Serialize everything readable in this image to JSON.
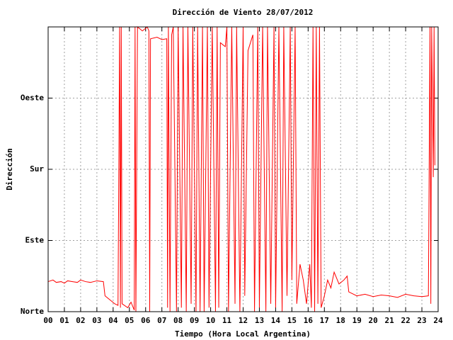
{
  "chart_data": {
    "type": "line",
    "title": "Dirección de Viento 28/07/2012",
    "x_label": "Tiempo (Hora Local Argentina)",
    "y_label": "Dirección",
    "color": "#ff0000",
    "grid": true,
    "xlim": [
      0,
      24
    ],
    "ylim": [
      0,
      360
    ],
    "xticks": [
      {
        "value": 0,
        "label": "00"
      },
      {
        "value": 1,
        "label": "01"
      },
      {
        "value": 2,
        "label": "02"
      },
      {
        "value": 3,
        "label": "03"
      },
      {
        "value": 4,
        "label": "04"
      },
      {
        "value": 5,
        "label": "05"
      },
      {
        "value": 6,
        "label": "06"
      },
      {
        "value": 7,
        "label": "07"
      },
      {
        "value": 8,
        "label": "08"
      },
      {
        "value": 9,
        "label": "09"
      },
      {
        "value": 10,
        "label": "10"
      },
      {
        "value": 11,
        "label": "11"
      },
      {
        "value": 12,
        "label": "12"
      },
      {
        "value": 13,
        "label": "13"
      },
      {
        "value": 14,
        "label": "14"
      },
      {
        "value": 15,
        "label": "15"
      },
      {
        "value": 16,
        "label": "16"
      },
      {
        "value": 17,
        "label": "17"
      },
      {
        "value": 18,
        "label": "18"
      },
      {
        "value": 19,
        "label": "19"
      },
      {
        "value": 20,
        "label": "20"
      },
      {
        "value": 21,
        "label": "21"
      },
      {
        "value": 22,
        "label": "22"
      },
      {
        "value": 23,
        "label": "23"
      },
      {
        "value": 24,
        "label": "24"
      }
    ],
    "yticks": [
      {
        "value": 0,
        "label": "Norte"
      },
      {
        "value": 90,
        "label": "Este"
      },
      {
        "value": 180,
        "label": "Sur"
      },
      {
        "value": 270,
        "label": "Oeste"
      }
    ],
    "x": [
      0,
      0.3,
      0.5,
      0.8,
      1,
      1.2,
      1.5,
      1.8,
      2,
      2.3,
      2.6,
      3,
      3.4,
      3.5,
      3.8,
      4.1,
      4.3,
      4.4,
      4.45,
      4.5,
      4.55,
      4.9,
      5.1,
      5.3,
      5.35,
      5.4,
      5.5,
      5.8,
      6.1,
      6.2,
      6.25,
      6.3,
      6.7,
      7.0,
      7.3,
      7.35,
      7.4,
      7.5,
      7.6,
      7.7,
      7.9,
      8.0,
      8.2,
      8.3,
      8.5,
      8.6,
      8.8,
      8.9,
      9.1,
      9.2,
      9.35,
      9.5,
      9.6,
      9.8,
      9.9,
      10.1,
      10.3,
      10.4,
      10.5,
      10.6,
      10.9,
      11.0,
      11.1,
      11.3,
      11.5,
      11.6,
      11.8,
      12.0,
      12.1,
      12.3,
      12.6,
      12.7,
      12.9,
      13.0,
      13.2,
      13.4,
      13.5,
      13.7,
      13.9,
      14.0,
      14.2,
      14.4,
      14.5,
      14.7,
      14.9,
      15.0,
      15.2,
      15.3,
      15.5,
      15.7,
      15.9,
      16.1,
      16.2,
      16.3,
      16.4,
      16.5,
      16.6,
      16.7,
      16.8,
      17.0,
      17.2,
      17.4,
      17.6,
      17.9,
      18.2,
      18.4,
      18.5,
      19,
      19.5,
      20,
      20.5,
      21,
      21.5,
      22,
      22.5,
      23,
      23.4,
      23.5,
      23.55,
      23.6,
      23.7,
      23.75,
      23.8
    ],
    "values": [
      38,
      40,
      37,
      38,
      36,
      39,
      38,
      37,
      40,
      38,
      37,
      39,
      38,
      20,
      15,
      10,
      8,
      360,
      5,
      360,
      10,
      5,
      12,
      2,
      360,
      0,
      360,
      355,
      360,
      355,
      0,
      345,
      347,
      344,
      345,
      5,
      360,
      0,
      350,
      360,
      0,
      360,
      5,
      360,
      0,
      360,
      10,
      360,
      0,
      360,
      0,
      360,
      0,
      360,
      5,
      360,
      0,
      360,
      5,
      340,
      335,
      360,
      0,
      360,
      10,
      360,
      0,
      360,
      20,
      330,
      350,
      0,
      360,
      5,
      360,
      0,
      360,
      10,
      360,
      5,
      360,
      0,
      360,
      20,
      360,
      40,
      360,
      10,
      60,
      40,
      10,
      60,
      5,
      360,
      0,
      360,
      10,
      360,
      5,
      20,
      40,
      30,
      50,
      35,
      40,
      45,
      25,
      20,
      22,
      19,
      21,
      20,
      18,
      22,
      20,
      19,
      20,
      360,
      10,
      360,
      170,
      360,
      185
    ]
  }
}
